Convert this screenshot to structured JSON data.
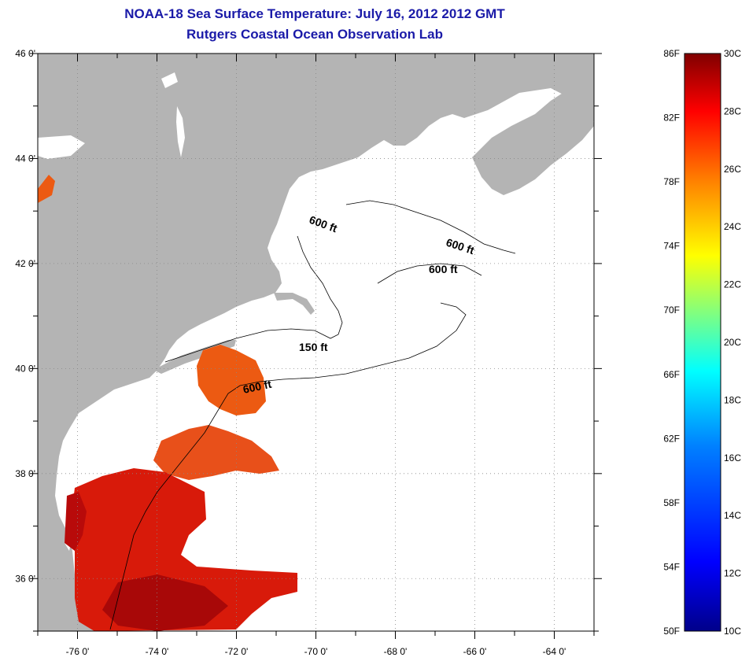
{
  "header": {
    "title": "NOAA-18 Sea Surface Temperature:  July 16, 2012 2012 GMT",
    "subtitle": "Rutgers Coastal Ocean Observation Lab"
  },
  "map": {
    "lon_range": [
      -77,
      -63
    ],
    "lat_range": [
      35,
      46
    ],
    "lon_ticks": [
      "-76 0'",
      "-74 0'",
      "-72 0'",
      "-70 0'",
      "-68 0'",
      "-66 0'",
      "-64 0'"
    ],
    "lat_ticks": [
      "46 0'",
      "44 0'",
      "42 0'",
      "40 0'",
      "38 0'",
      "36 0'"
    ],
    "contour_labels": [
      "600 ft",
      "600 ft",
      "600 ft",
      "150 ft",
      "600 ft"
    ],
    "colors": {
      "land": "#b4b4b4",
      "ocean": "#ffffff",
      "sst_warm": "#d81a0a",
      "sst_warmer": "#b80a0a",
      "sst_mid": "#ec5a12"
    }
  },
  "colorbar": {
    "f_labels": [
      "86F",
      "82F",
      "78F",
      "74F",
      "70F",
      "66F",
      "62F",
      "58F",
      "54F",
      "50F"
    ],
    "c_labels": [
      "30C",
      "28C",
      "26C",
      "24C",
      "22C",
      "20C",
      "18C",
      "16C",
      "14C",
      "12C",
      "10C"
    ],
    "f_range": [
      50,
      86
    ],
    "c_range": [
      10,
      30
    ],
    "gradient": [
      "#00008a",
      "#0000ff",
      "#0080ff",
      "#00ffff",
      "#80ff80",
      "#ffff00",
      "#ff8000",
      "#ff0000",
      "#800000"
    ]
  }
}
